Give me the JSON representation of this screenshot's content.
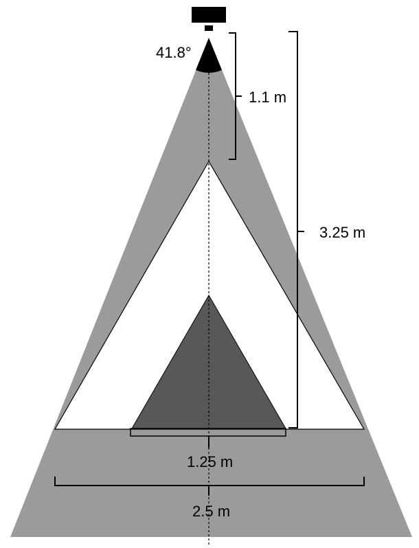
{
  "labels": {
    "angle": "41.8°",
    "camera_to_top_distance": "1.1 m",
    "camera_to_base_distance": "3.25 m",
    "inner_base_width": "1.25 m",
    "outer_base_width": "2.5 m"
  },
  "colors": {
    "outer_field_of_view": "#9b9b9b",
    "white_region": "#ffffff",
    "inner_triangle": "#585858",
    "camera": "#000000",
    "lines": "#000000"
  }
}
